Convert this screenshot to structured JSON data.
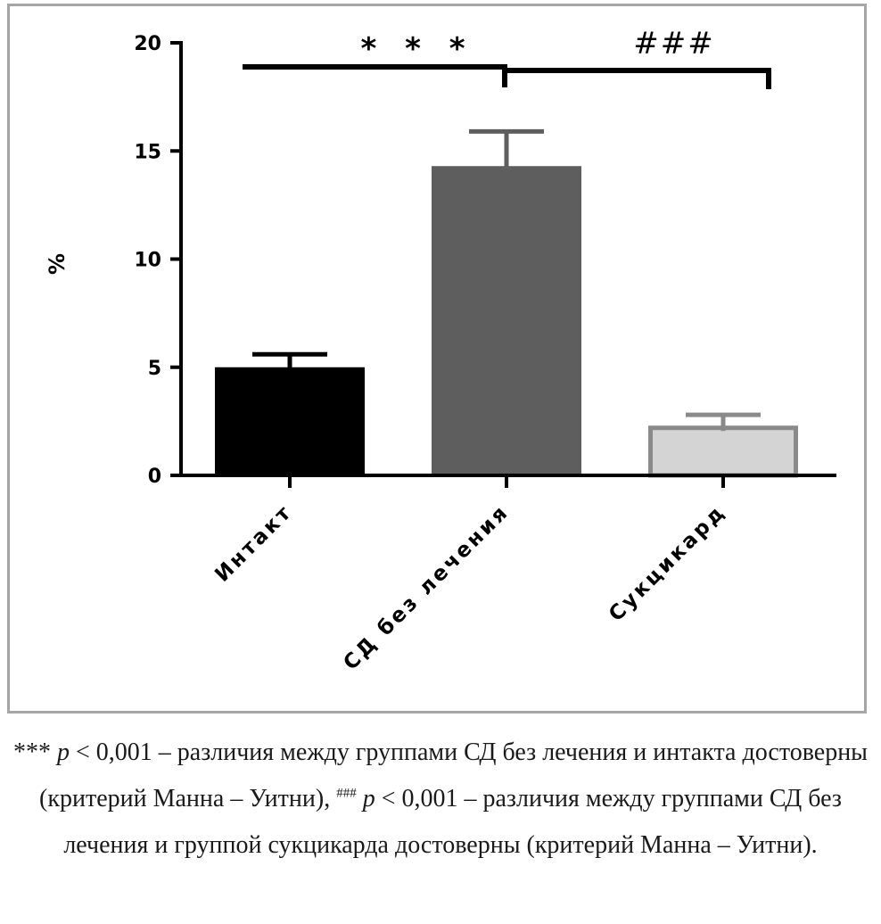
{
  "chart_data": {
    "type": "bar",
    "categories": [
      "Интакт",
      "СД без лечения",
      "Сукцикард"
    ],
    "values": [
      5.0,
      14.3,
      2.3
    ],
    "errors": [
      0.6,
      1.6,
      0.5
    ],
    "bar_colors": [
      "#000000",
      "#5e5e5e",
      "#d4d4d4"
    ],
    "bar_outline_colors": [
      "#000000",
      "#5e5e5e",
      "#8a8a8a"
    ],
    "ylabel": "%",
    "ylim": [
      0,
      20
    ],
    "yticks": [
      "0",
      "5",
      "10",
      "15",
      "20"
    ],
    "grid": false,
    "significance": [
      {
        "label": "* * *",
        "from": 0,
        "to": 1
      },
      {
        "label": "###",
        "from": 1,
        "to": 2
      }
    ]
  },
  "caption": {
    "part1_marks": "***",
    "part1_p": "p",
    "part1_text": " < 0,001 – различия между группами СД без лечения и интакта достоверны (критерий Манна – Уитни), ",
    "part2_marks": "###",
    "part2_p": "p",
    "part2_text": " < 0,001 – различия между группами СД без лечения и группой сукцикарда достоверны (критерий Манна – Уитни)."
  }
}
